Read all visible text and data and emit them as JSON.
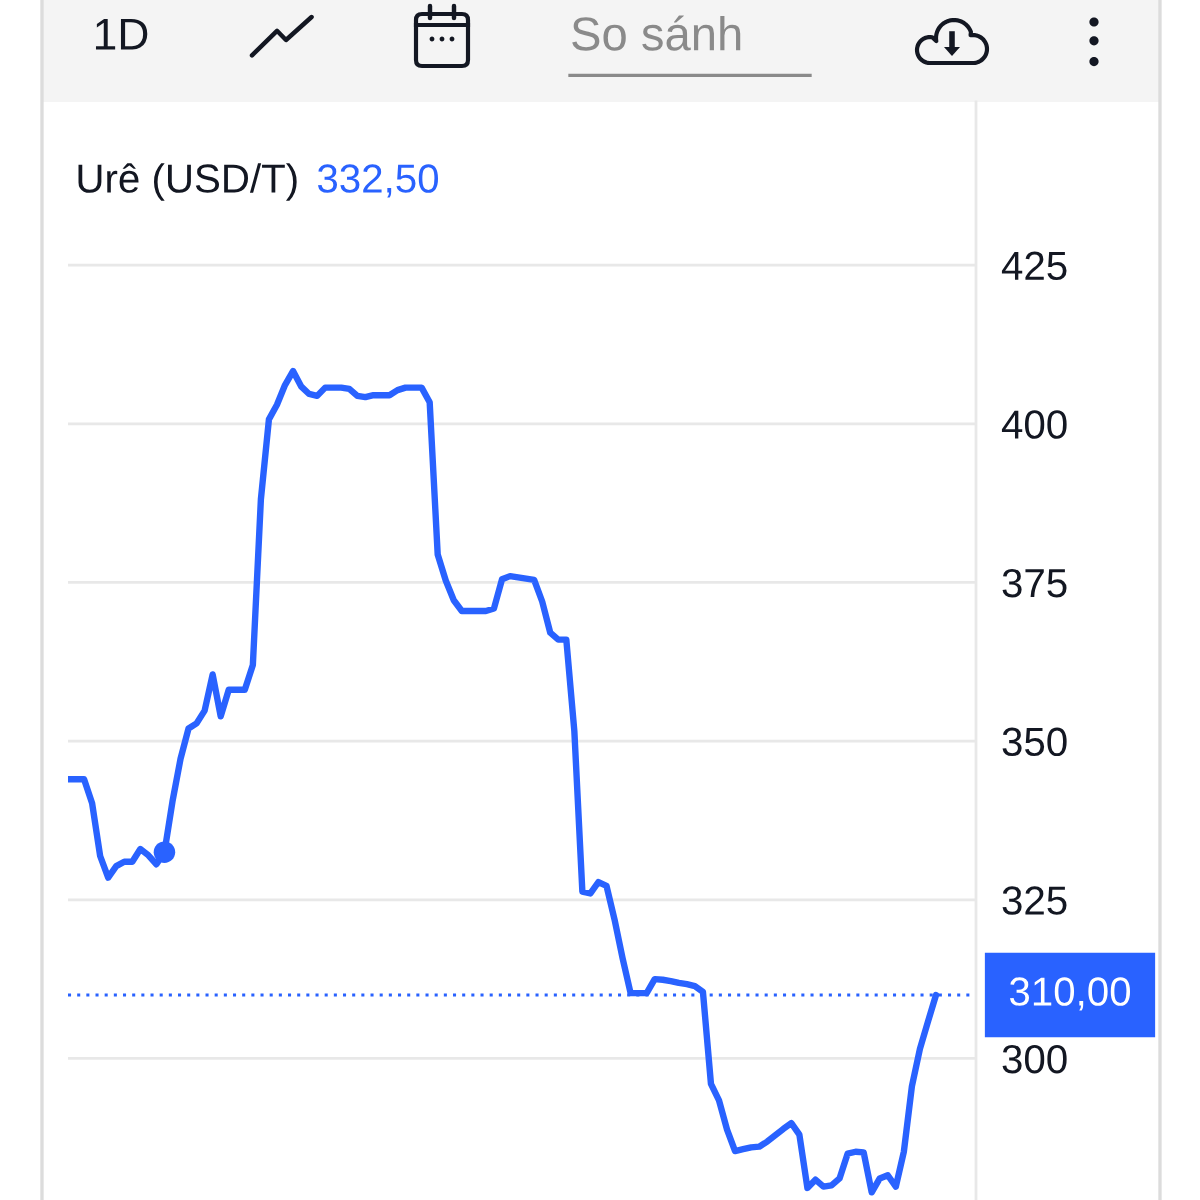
{
  "chart_data": {
    "type": "line",
    "title": "Urê (USD/T)",
    "annotations": [
      "1D",
      "So sánh",
      "332,50"
    ],
    "categories": [
      null,
      null,
      null,
      null,
      null,
      null,
      null,
      null,
      null,
      null,
      null,
      null,
      null,
      null,
      null,
      null,
      null,
      null,
      null,
      null,
      null,
      null,
      null,
      null,
      null,
      null,
      null,
      null,
      null,
      null,
      null,
      null,
      null,
      null,
      null,
      null,
      null,
      null,
      null,
      null,
      null,
      null,
      null,
      null,
      null,
      null,
      null,
      null,
      null,
      null,
      null,
      null,
      null,
      null,
      null,
      null,
      null,
      null,
      null,
      null,
      null,
      null,
      null,
      null,
      null,
      null,
      null,
      null,
      null,
      null,
      null,
      null,
      null,
      null,
      null,
      null,
      null,
      null,
      null,
      null,
      null,
      null,
      null,
      null,
      null,
      null,
      null,
      null,
      null,
      null,
      null,
      null,
      null,
      null,
      null,
      null,
      null,
      null,
      null,
      null,
      null,
      null,
      null,
      null,
      null,
      null,
      null,
      null,
      null
    ],
    "series": [
      {
        "color": "#2962ff",
        "values": [
          344,
          344,
          344,
          340.2,
          331.9,
          328.5,
          330.3,
          331,
          331,
          333,
          332,
          330.6,
          332.5,
          340.5,
          347.2,
          352,
          352.8,
          354.8,
          360.5,
          353.9,
          358.1,
          358.1,
          358.1,
          362,
          388.1,
          400.7,
          403,
          406.1,
          408.3,
          405.9,
          404.7,
          404.4,
          405.7,
          405.7,
          405.7,
          405.5,
          404.4,
          404.2,
          404.5,
          404.5,
          404.5,
          405.3,
          405.7,
          405.7,
          405.7,
          403.4,
          379.4,
          375.3,
          372.2,
          370.5,
          370.5,
          370.5,
          370.5,
          370.9,
          375.5,
          376,
          375.8,
          375.6,
          375.4,
          372,
          367.1,
          366,
          366,
          351.6,
          326.3,
          326,
          327.8,
          327.2,
          321.9,
          315.8,
          310.3,
          310.3,
          310.3,
          312.5,
          312.4,
          312.2,
          311.9,
          311.7,
          311.4,
          310.5,
          296,
          293.4,
          288.8,
          285.4,
          285.7,
          286,
          286.1,
          286.9,
          287.9,
          288.9,
          289.8,
          288,
          279.6,
          280.9,
          279.8,
          280,
          281.1,
          285,
          285.3,
          285.2,
          278.9,
          281.1,
          281.6,
          279.8,
          285.3,
          295.6,
          301.5,
          305.8,
          310
        ]
      },
      {
        "type": "scatter",
        "marker": "circle",
        "color": "#2962ff",
        "values": [
          null,
          null,
          null,
          null,
          null,
          null,
          null,
          null,
          null,
          null,
          null,
          null,
          332.5,
          null,
          null,
          null,
          null,
          null,
          null,
          null,
          null,
          null,
          null,
          null,
          null,
          null,
          null,
          null,
          null,
          null,
          null,
          null,
          null,
          null,
          null,
          null,
          null,
          null,
          null,
          null,
          null,
          null,
          null,
          null,
          null,
          null,
          null,
          null,
          null,
          null,
          null,
          null,
          null,
          null,
          null,
          null,
          null,
          null,
          null,
          null,
          null,
          null,
          null,
          null,
          null,
          null,
          null,
          null,
          null,
          null,
          null,
          null,
          null,
          null,
          null,
          null,
          null,
          null,
          null,
          null,
          null,
          null,
          null,
          null,
          null,
          null,
          null,
          null,
          null,
          null,
          null,
          null,
          null,
          null,
          null,
          null,
          null,
          null,
          null,
          null,
          null,
          null,
          null,
          null,
          null,
          null,
          null,
          null,
          null
        ]
      }
    ],
    "ylim": [
      277.7,
      450.7
    ],
    "yticks": [
      300,
      325,
      350,
      375,
      400,
      425
    ],
    "grid": "y",
    "tick_labels": "y",
    "ref_lines": [
      {
        "axis": "y",
        "value": 310,
        "label": "310,00",
        "color": "#2962ff",
        "line_style": "dotted"
      }
    ]
  }
}
